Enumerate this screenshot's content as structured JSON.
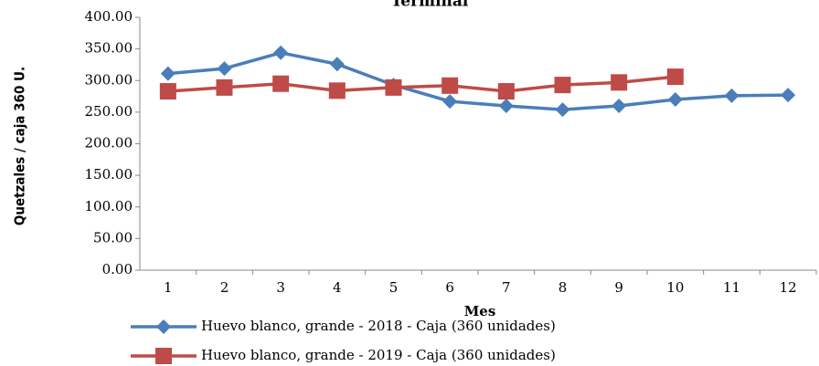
{
  "chart_data": {
    "type": "line",
    "title": "Terminal",
    "x_label": "Mes",
    "y_label": "Quetzales / caja 360 U.",
    "categories": [
      "1",
      "2",
      "3",
      "4",
      "5",
      "6",
      "7",
      "8",
      "9",
      "10",
      "11",
      "12"
    ],
    "series": [
      {
        "name": "Huevo blanco, grande - 2018 - Caja (360 unidades)",
        "color": "#4a7ebb",
        "marker": "diamond",
        "values": [
          311,
          319,
          344,
          326,
          293,
          267,
          260,
          254,
          260,
          270,
          276,
          277
        ]
      },
      {
        "name": "Huevo blanco, grande - 2019 - Caja (360 unidades)",
        "color": "#be4b48",
        "marker": "square",
        "values": [
          283,
          289,
          295,
          284,
          289,
          292,
          283,
          293,
          297,
          306,
          null,
          null
        ]
      }
    ],
    "ylim": [
      0,
      400
    ],
    "yticks": [
      {
        "value": 0,
        "label": "0.00"
      },
      {
        "value": 50,
        "label": "50.00"
      },
      {
        "value": 100,
        "label": "100.00"
      },
      {
        "value": 150,
        "label": "150.00"
      },
      {
        "value": 200,
        "label": "200.00"
      },
      {
        "value": 250,
        "label": "250.00"
      },
      {
        "value": 300,
        "label": "300.00"
      },
      {
        "value": 350,
        "label": "350.00"
      },
      {
        "value": 400,
        "label": "400.00"
      }
    ],
    "grid": false,
    "legend": "bottom"
  }
}
